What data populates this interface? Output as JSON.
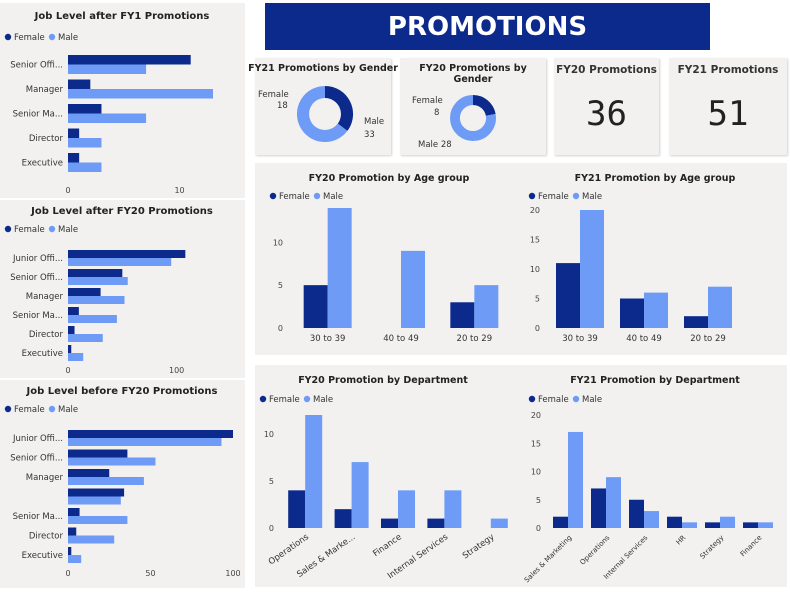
{
  "page_title": "PROMOTIONS",
  "colors": {
    "female": "#0b2a8c",
    "male": "#6e9bf5",
    "banner": "#0b2a8c",
    "axis": "#444444"
  },
  "kpis": [
    {
      "title": "FY20 Promotions",
      "value": "36"
    },
    {
      "title": "FY21 Promotions",
      "value": "51"
    }
  ],
  "chart_data": [
    {
      "id": "jl_fy1",
      "type": "bar",
      "orientation": "horizontal",
      "title": "Job Level after FY1 Promotions",
      "categories": [
        "Senior Offi...",
        "Manager",
        "Senior Ma...",
        "Director",
        "Executive"
      ],
      "series": [
        {
          "name": "Female",
          "values": [
            11,
            2,
            3,
            1,
            1
          ]
        },
        {
          "name": "Male",
          "values": [
            7,
            13,
            7,
            3,
            3
          ]
        }
      ],
      "xticks": [
        "0",
        "10"
      ],
      "xlim": [
        0,
        13
      ],
      "legend": "top-left"
    },
    {
      "id": "jl_fy20_after",
      "type": "bar",
      "orientation": "horizontal",
      "title": "Job Level after FY20 Promotions",
      "categories": [
        "Junior Offi...",
        "Senior Offi...",
        "Manager",
        "Senior Ma...",
        "Director",
        "Executive"
      ],
      "series": [
        {
          "name": "Female",
          "values": [
            108,
            50,
            30,
            10,
            6,
            3
          ]
        },
        {
          "name": "Male",
          "values": [
            95,
            55,
            52,
            45,
            32,
            14
          ]
        }
      ],
      "xticks": [
        "0",
        "100"
      ],
      "xlim": [
        0,
        162
      ],
      "legend": "top-left"
    },
    {
      "id": "jl_before_fy20",
      "type": "bar",
      "orientation": "horizontal",
      "title": "Job Level before FY20 Promotions",
      "categories": [
        "Junior Offi...",
        "Senior Offi...",
        "Manager",
        "",
        "Senior Ma...",
        "Director",
        "Executive"
      ],
      "series": [
        {
          "name": "Female",
          "values": [
            100,
            36,
            25,
            34,
            7,
            5,
            2
          ]
        },
        {
          "name": "Male",
          "values": [
            93,
            53,
            46,
            32,
            36,
            28,
            8
          ]
        }
      ],
      "xticks": [
        "0",
        "50",
        "100"
      ],
      "xlim": [
        0,
        100
      ],
      "legend": "top-left"
    },
    {
      "id": "donut_fy21",
      "type": "pie",
      "donut": true,
      "title": "FY21 Promotions by Gender",
      "labels": [
        "Female",
        "Male"
      ],
      "values": [
        18,
        33
      ]
    },
    {
      "id": "donut_fy20",
      "type": "pie",
      "donut": true,
      "title": "FY20 Promotions by Gender",
      "labels": [
        "Female",
        "Male"
      ],
      "values": [
        8,
        28
      ]
    },
    {
      "id": "age_fy20",
      "type": "bar",
      "title": "FY20 Promotion by Age group",
      "categories": [
        "30 to 39",
        "40 to 49",
        "20 to 29"
      ],
      "series": [
        {
          "name": "Female",
          "values": [
            5,
            0,
            3
          ]
        },
        {
          "name": "Male",
          "values": [
            14,
            9,
            5
          ]
        }
      ],
      "ylim": [
        0,
        14
      ],
      "yticks": [
        0,
        5,
        10
      ],
      "legend": "top-left"
    },
    {
      "id": "age_fy21",
      "type": "bar",
      "title": "FY21 Promotion by Age group",
      "categories": [
        "30 to 39",
        "40 to 49",
        "20 to 29"
      ],
      "series": [
        {
          "name": "Female",
          "values": [
            11,
            5,
            2
          ]
        },
        {
          "name": "Male",
          "values": [
            20,
            6,
            7
          ]
        }
      ],
      "ylim": [
        0,
        20
      ],
      "yticks": [
        0,
        5,
        10,
        15,
        20
      ],
      "legend": "top-left"
    },
    {
      "id": "dept_fy20",
      "type": "bar",
      "title": "FY20 Promotion by Department",
      "categories": [
        "Operations",
        "Sales & Marke...",
        "Finance",
        "Internal Services",
        "Strategy"
      ],
      "series": [
        {
          "name": "Female",
          "values": [
            4,
            2,
            1,
            1,
            0
          ]
        },
        {
          "name": "Male",
          "values": [
            12,
            7,
            4,
            4,
            1
          ]
        }
      ],
      "ylim": [
        0,
        12
      ],
      "yticks": [
        0,
        5,
        10
      ],
      "legend": "top-left"
    },
    {
      "id": "dept_fy21",
      "type": "bar",
      "title": "FY21 Promotion by Department",
      "categories": [
        "Sales & Marketing",
        "Operations",
        "Internal Services",
        "HR",
        "Strategy",
        "Finance"
      ],
      "series": [
        {
          "name": "Female",
          "values": [
            2,
            7,
            5,
            2,
            1,
            1
          ]
        },
        {
          "name": "Male",
          "values": [
            17,
            9,
            3,
            1,
            2,
            1
          ]
        }
      ],
      "ylim": [
        0,
        20
      ],
      "yticks": [
        0,
        5,
        10,
        15,
        20
      ],
      "legend": "top-left"
    }
  ]
}
